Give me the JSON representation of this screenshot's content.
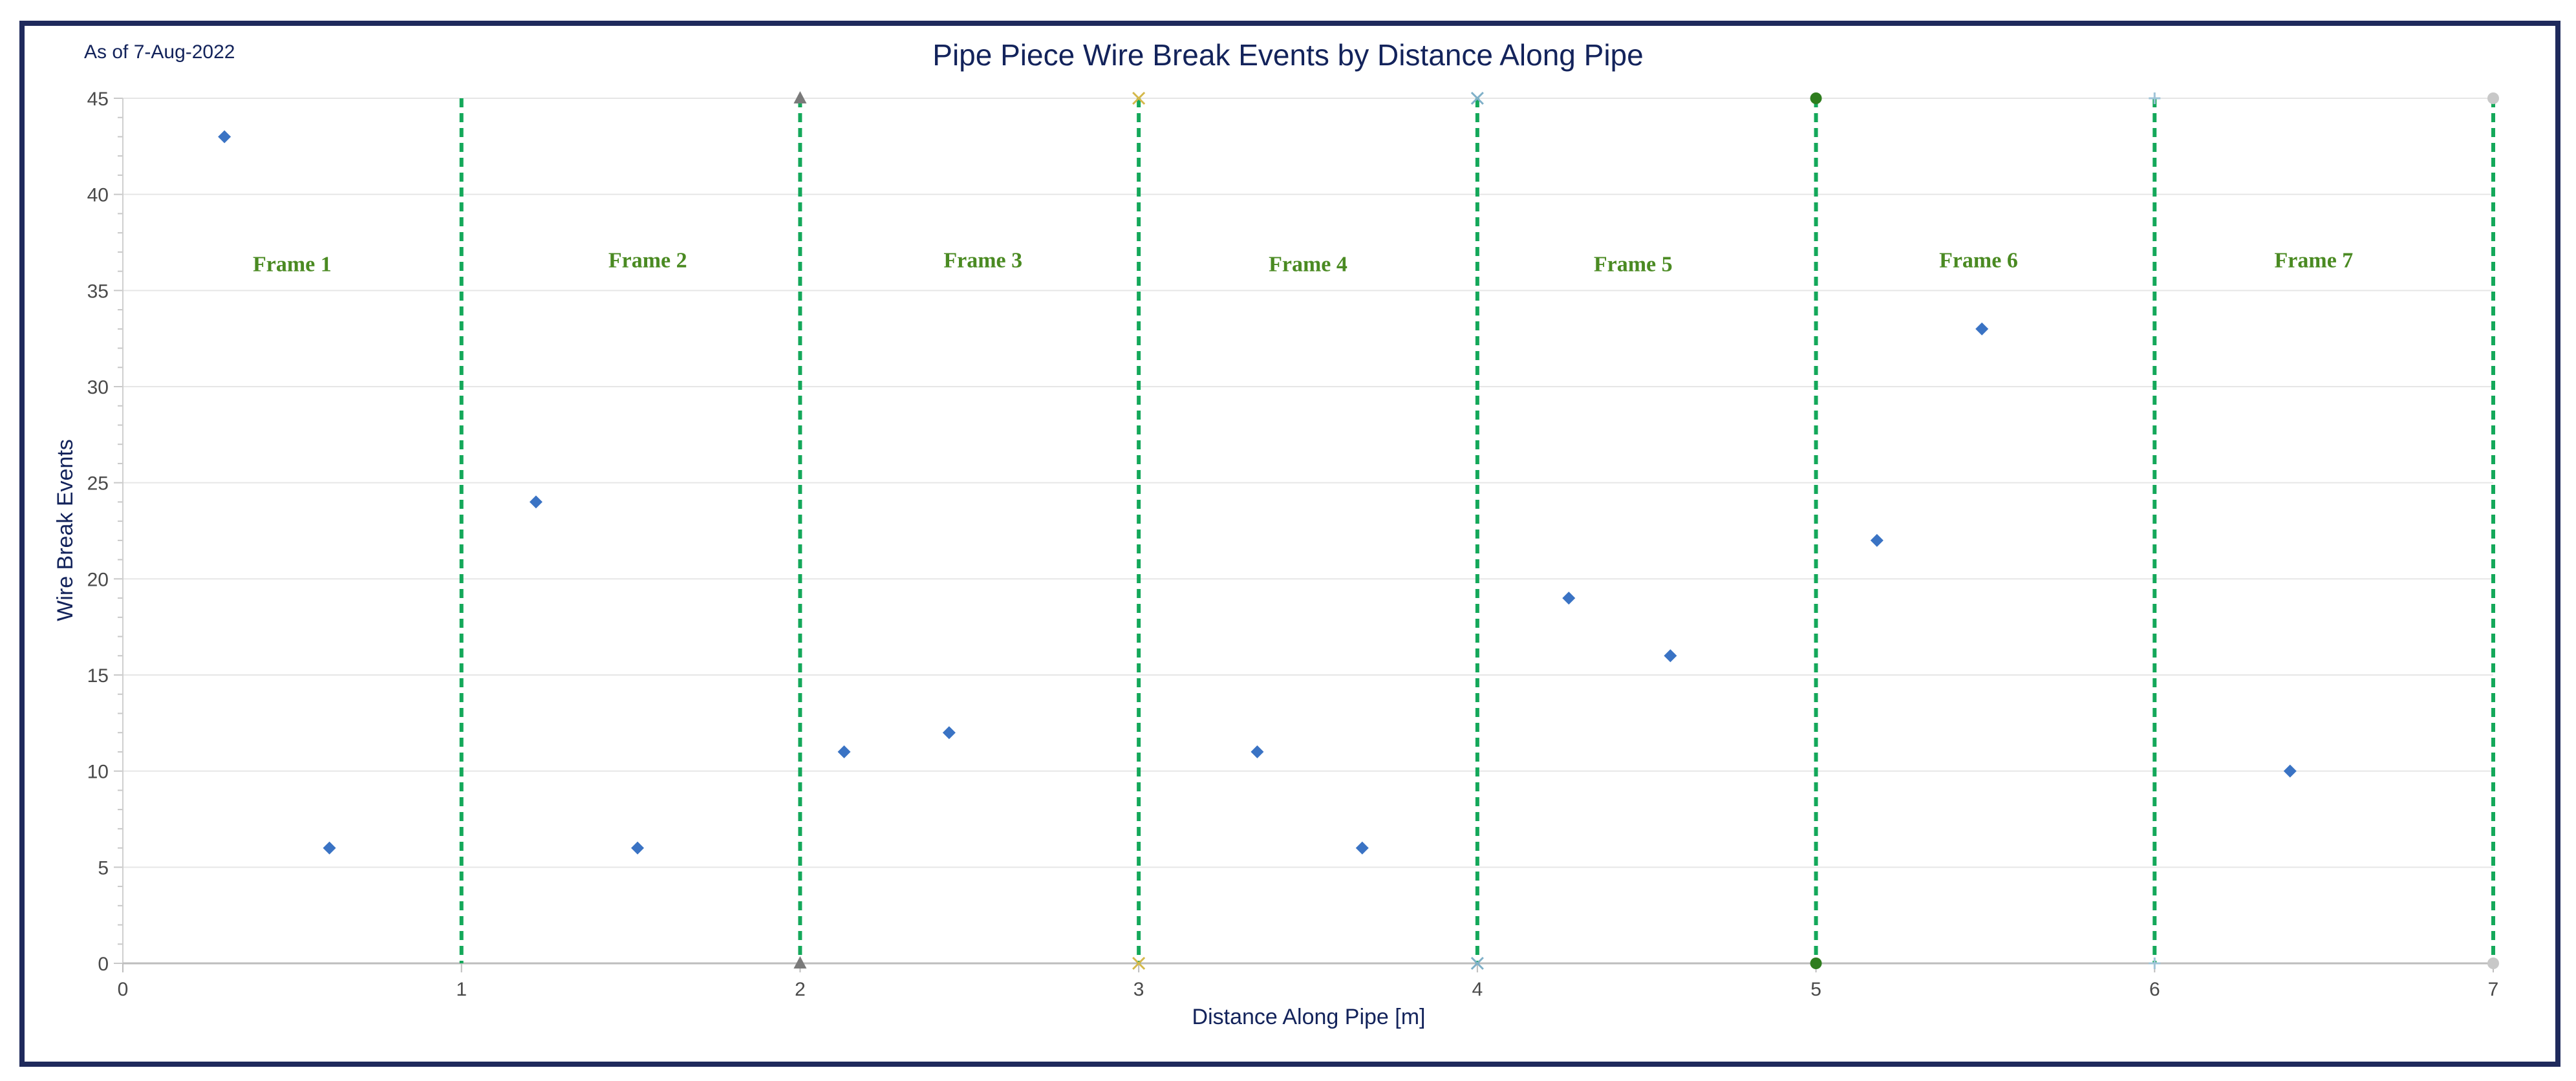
{
  "as_of": "As of 7-Aug-2022",
  "colors": {
    "point": "#3a73c4",
    "frame_line": "#14a85a",
    "frame_label": "#4a8a22",
    "grid": "#e6e6e6",
    "axis_text": "#4a4a4a",
    "title_text": "#13235b"
  },
  "chart_data": {
    "type": "scatter",
    "title": "Pipe Piece Wire Break Events by Distance Along Pipe",
    "xlabel": "Distance Along Pipe [m]",
    "ylabel": "Wire Break Events",
    "xlim": [
      0,
      7
    ],
    "ylim": [
      0,
      45
    ],
    "x_ticks": [
      "0",
      "1",
      "2",
      "3",
      "4",
      "5",
      "6",
      "7"
    ],
    "y_ticks": [
      "0",
      "5",
      "10",
      "15",
      "20",
      "25",
      "30",
      "35",
      "40",
      "45"
    ],
    "grid": "horizontal",
    "series": [
      {
        "marker": "diamond",
        "points": [
          {
            "x": 0.3,
            "y": 43
          },
          {
            "x": 0.61,
            "y": 6
          },
          {
            "x": 1.22,
            "y": 24
          },
          {
            "x": 1.52,
            "y": 6
          },
          {
            "x": 2.13,
            "y": 11
          },
          {
            "x": 2.44,
            "y": 12
          },
          {
            "x": 3.35,
            "y": 11
          },
          {
            "x": 3.66,
            "y": 6
          },
          {
            "x": 4.27,
            "y": 19
          },
          {
            "x": 4.57,
            "y": 16
          },
          {
            "x": 5.18,
            "y": 22
          },
          {
            "x": 5.49,
            "y": 33
          },
          {
            "x": 6.4,
            "y": 10
          }
        ]
      }
    ],
    "frame_boundaries": [
      {
        "x": 1,
        "marker": "none",
        "color": "#14a85a"
      },
      {
        "x": 2,
        "marker": "triangle",
        "color": "#7a7a7a"
      },
      {
        "x": 3,
        "marker": "x",
        "color": "#d4b84a"
      },
      {
        "x": 4,
        "marker": "x",
        "color": "#7fb0c8"
      },
      {
        "x": 5,
        "marker": "circle",
        "color": "#2e7d1e"
      },
      {
        "x": 6,
        "marker": "plus",
        "color": "#9fc4d8"
      },
      {
        "x": 7,
        "marker": "circle",
        "color": "#c8c8c8"
      }
    ],
    "frame_labels": [
      {
        "text": "Frame 1",
        "x": 0.5,
        "y": 36
      },
      {
        "text": "Frame 2",
        "x": 1.55,
        "y": 36.2
      },
      {
        "text": "Frame 3",
        "x": 2.54,
        "y": 36.2
      },
      {
        "text": "Frame 4",
        "x": 3.5,
        "y": 36
      },
      {
        "text": "Frame 5",
        "x": 4.46,
        "y": 36
      },
      {
        "text": "Frame 6",
        "x": 5.48,
        "y": 36.2
      },
      {
        "text": "Frame 7",
        "x": 6.47,
        "y": 36.2
      }
    ]
  }
}
